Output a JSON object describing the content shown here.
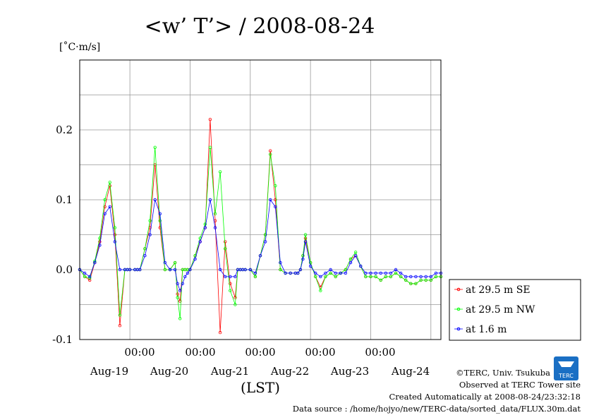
{
  "chart_data": {
    "type": "line",
    "title": "<w’ T’> / 2008-08-24",
    "unit": "[˚C·m/s]",
    "xlabel": "(LST)",
    "ylabel": "",
    "ylim": [
      -0.1,
      0.3
    ],
    "xlim": [
      0,
      144
    ],
    "y_ticks": [
      "0.2",
      "0.1",
      "0.0",
      "-0.1"
    ],
    "x_ticks_time": [
      "00:00",
      "00:00",
      "00:00",
      "00:00",
      "00:00"
    ],
    "x_ticks_date": [
      "Aug-19",
      "Aug-20",
      "Aug-21",
      "Aug-22",
      "Aug-23",
      "Aug-24"
    ],
    "grid": true,
    "legend_position": "right-bottom",
    "x_units": "hours from start of window",
    "series": [
      {
        "name": "at 29.5 m SE",
        "color": "#ff0000",
        "x": [
          0,
          2,
          4,
          6,
          8,
          10,
          12,
          14,
          16,
          18,
          19,
          20,
          22,
          23,
          24,
          26,
          28,
          30,
          32,
          34,
          36,
          38,
          39,
          40,
          41,
          42,
          43,
          44,
          46,
          48,
          50,
          52,
          54,
          56,
          58,
          60,
          62,
          63,
          64,
          65,
          66,
          68,
          70,
          72,
          74,
          76,
          78,
          80,
          82,
          84,
          86,
          87,
          88,
          89,
          90,
          92,
          94,
          96,
          98,
          100,
          102,
          104,
          106,
          108,
          110,
          112,
          114,
          116,
          118,
          120,
          122,
          124,
          126,
          128,
          130,
          132,
          134,
          136,
          138,
          140,
          142,
          144
        ],
        "y": [
          0.0,
          -0.01,
          -0.015,
          0.01,
          0.04,
          0.09,
          0.12,
          0.05,
          -0.08,
          0.0,
          0.0,
          0.0,
          0.0,
          0.0,
          0.0,
          0.03,
          0.06,
          0.15,
          0.06,
          0.0,
          0.0,
          0.01,
          -0.035,
          -0.045,
          0.0,
          0.0,
          0.0,
          0.0,
          0.02,
          0.04,
          0.06,
          0.215,
          0.07,
          -0.09,
          0.04,
          -0.02,
          -0.04,
          0.0,
          0.0,
          0.0,
          0.0,
          0.0,
          -0.01,
          0.02,
          0.05,
          0.17,
          0.1,
          0.0,
          -0.005,
          -0.005,
          -0.005,
          -0.005,
          0.0,
          0.02,
          0.045,
          0.01,
          -0.01,
          -0.025,
          -0.01,
          -0.005,
          -0.01,
          -0.005,
          0.0,
          0.015,
          0.02,
          0.005,
          -0.01,
          -0.01,
          -0.01,
          -0.015,
          -0.01,
          -0.01,
          -0.005,
          -0.01,
          -0.015,
          -0.02,
          -0.02,
          -0.015,
          -0.015,
          -0.015,
          -0.01,
          -0.01
        ]
      },
      {
        "name": "at 29.5 m NW",
        "color": "#00ff00",
        "x": [
          0,
          2,
          4,
          6,
          8,
          10,
          12,
          14,
          16,
          18,
          19,
          20,
          22,
          23,
          24,
          26,
          28,
          30,
          32,
          34,
          36,
          38,
          39,
          40,
          41,
          42,
          43,
          44,
          46,
          48,
          50,
          52,
          54,
          56,
          58,
          60,
          62,
          63,
          64,
          65,
          66,
          68,
          70,
          72,
          74,
          76,
          78,
          80,
          82,
          84,
          86,
          87,
          88,
          89,
          90,
          92,
          94,
          96,
          98,
          100,
          102,
          104,
          106,
          108,
          110,
          112,
          114,
          116,
          118,
          120,
          122,
          124,
          126,
          128,
          130,
          132,
          134,
          136,
          138,
          140,
          142,
          144
        ],
        "y": [
          0.0,
          -0.01,
          -0.012,
          0.012,
          0.045,
          0.1,
          0.125,
          0.06,
          -0.065,
          0.0,
          0.0,
          0.0,
          0.0,
          0.0,
          0.0,
          0.03,
          0.07,
          0.175,
          0.07,
          0.0,
          0.0,
          0.01,
          -0.04,
          -0.07,
          0.0,
          0.0,
          0.0,
          0.0,
          0.02,
          0.045,
          0.065,
          0.175,
          0.08,
          0.14,
          0.03,
          -0.03,
          -0.05,
          0.0,
          0.0,
          0.0,
          0.0,
          0.0,
          -0.01,
          0.02,
          0.05,
          0.165,
          0.12,
          0.0,
          -0.005,
          -0.005,
          -0.005,
          -0.005,
          0.0,
          0.02,
          0.05,
          0.01,
          -0.01,
          -0.03,
          -0.01,
          -0.005,
          -0.01,
          -0.005,
          0.0,
          0.015,
          0.025,
          0.005,
          -0.01,
          -0.01,
          -0.01,
          -0.015,
          -0.01,
          -0.01,
          -0.005,
          -0.01,
          -0.015,
          -0.02,
          -0.02,
          -0.015,
          -0.015,
          -0.015,
          -0.01,
          -0.01
        ]
      },
      {
        "name": "at 1.6 m",
        "color": "#0000ff",
        "x": [
          0,
          2,
          4,
          6,
          8,
          10,
          12,
          14,
          16,
          18,
          19,
          20,
          22,
          23,
          24,
          26,
          28,
          30,
          32,
          34,
          36,
          38,
          39,
          40,
          41,
          42,
          43,
          44,
          46,
          48,
          50,
          52,
          54,
          56,
          58,
          60,
          62,
          63,
          64,
          65,
          66,
          68,
          70,
          72,
          74,
          76,
          78,
          80,
          82,
          84,
          86,
          87,
          88,
          89,
          90,
          92,
          94,
          96,
          98,
          100,
          102,
          104,
          106,
          108,
          110,
          112,
          114,
          116,
          118,
          120,
          122,
          124,
          126,
          128,
          130,
          132,
          134,
          136,
          138,
          140,
          142,
          144
        ],
        "y": [
          0.0,
          -0.005,
          -0.01,
          0.01,
          0.035,
          0.08,
          0.09,
          0.04,
          0.0,
          0.0,
          0.0,
          0.0,
          0.0,
          0.0,
          0.0,
          0.02,
          0.05,
          0.1,
          0.08,
          0.01,
          0.0,
          0.0,
          -0.02,
          -0.03,
          -0.02,
          -0.01,
          -0.005,
          0.0,
          0.015,
          0.04,
          0.06,
          0.1,
          0.06,
          0.0,
          -0.01,
          -0.01,
          -0.01,
          0.0,
          0.0,
          0.0,
          0.0,
          0.0,
          -0.005,
          0.02,
          0.04,
          0.1,
          0.09,
          0.01,
          -0.005,
          -0.005,
          -0.005,
          -0.005,
          0.0,
          0.015,
          0.04,
          0.005,
          -0.005,
          -0.01,
          -0.005,
          0.0,
          -0.005,
          -0.005,
          -0.005,
          0.01,
          0.02,
          0.005,
          -0.005,
          -0.005,
          -0.005,
          -0.005,
          -0.005,
          -0.005,
          0.0,
          -0.005,
          -0.01,
          -0.01,
          -0.01,
          -0.01,
          -0.01,
          -0.01,
          -0.005,
          -0.005
        ]
      }
    ]
  },
  "footer": {
    "copyright": "©TERC, Univ. Tsukuba",
    "observed": "Observed at TERC Tower site",
    "created": "Created Automatically at 2008-08-24/23:32:18",
    "source": "Data source : /home/hojyo/new/TERC-data/sorted_data/FLUX.30m.dat"
  },
  "logo": {
    "text": "TERC",
    "color": "#1a6fc4"
  }
}
